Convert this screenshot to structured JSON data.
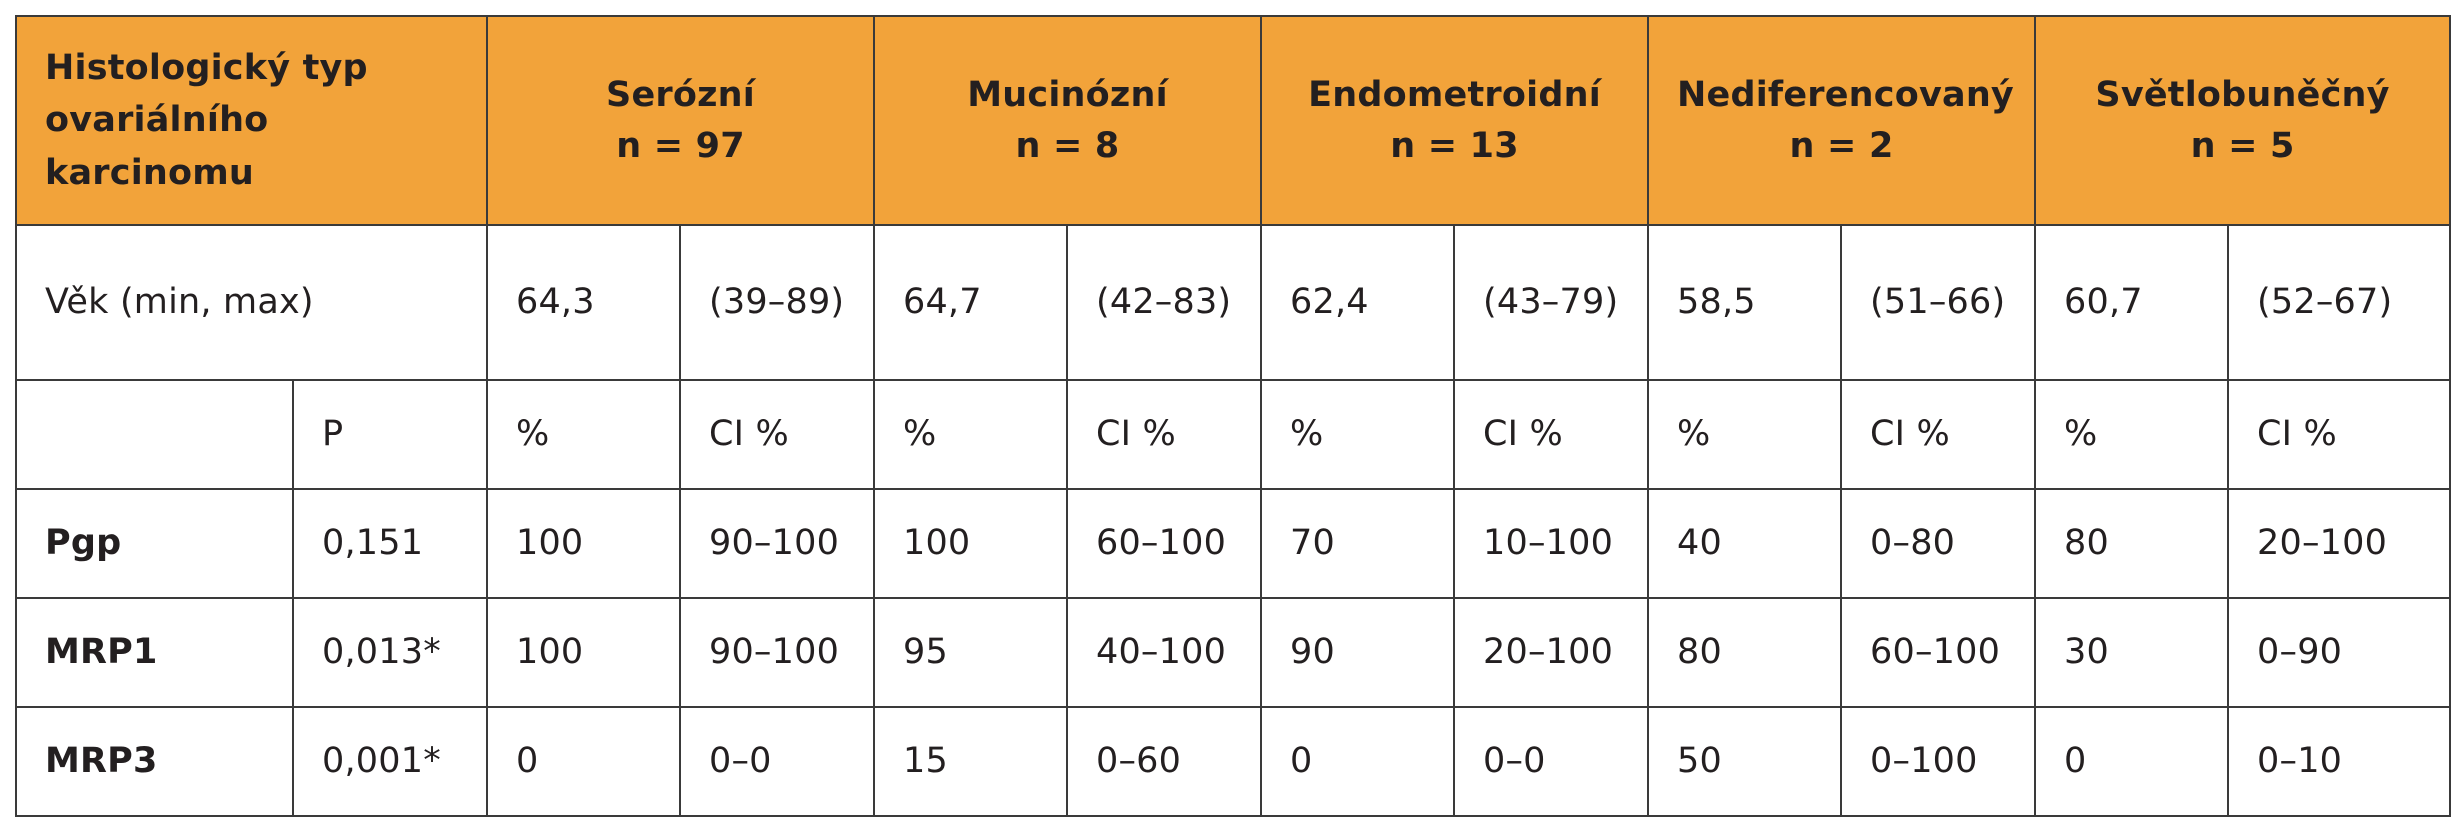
{
  "header": {
    "corner_label": "Histologický typ ovariálního karcinomu",
    "groups": [
      {
        "name": "Serózní",
        "n": "n = 97"
      },
      {
        "name": "Mucinózní",
        "n": "n = 8"
      },
      {
        "name": "Endometroidní",
        "n": "n = 13"
      },
      {
        "name": "Nediferencovaný",
        "n": "n = 2"
      },
      {
        "name": "Světlobuněčný",
        "n": "n = 5"
      }
    ]
  },
  "age_row": {
    "label": "Věk (min, max)",
    "values": [
      {
        "mean": "64,3",
        "range": "(39–89)"
      },
      {
        "mean": "64,7",
        "range": "(42–83)"
      },
      {
        "mean": "62,4",
        "range": "(43–79)"
      },
      {
        "mean": "58,5",
        "range": "(51–66)"
      },
      {
        "mean": "60,7",
        "range": "(52–67)"
      }
    ]
  },
  "units_row": {
    "p_label": "P",
    "pct_label": "%",
    "ci_label": "CI %"
  },
  "markers": [
    {
      "name": "Pgp",
      "p": "0,151",
      "cells": [
        [
          "100",
          "90–100"
        ],
        [
          "100",
          "60–100"
        ],
        [
          "70",
          "10–100"
        ],
        [
          "40",
          "0–80"
        ],
        [
          "80",
          "20–100"
        ]
      ]
    },
    {
      "name": "MRP1",
      "p": "0,013*",
      "cells": [
        [
          "100",
          "90–100"
        ],
        [
          "95",
          "40–100"
        ],
        [
          "90",
          "20–100"
        ],
        [
          "80",
          "60–100"
        ],
        [
          "30",
          "0–90"
        ]
      ]
    },
    {
      "name": "MRP3",
      "p": "0,001*",
      "cells": [
        [
          "0",
          "0–0"
        ],
        [
          "15",
          "0–60"
        ],
        [
          "0",
          "0–0"
        ],
        [
          "50",
          "0–100"
        ],
        [
          "0",
          "0–10"
        ]
      ]
    }
  ],
  "colors": {
    "header_bg": "#f2a33a",
    "border": "#3a3a3a"
  }
}
